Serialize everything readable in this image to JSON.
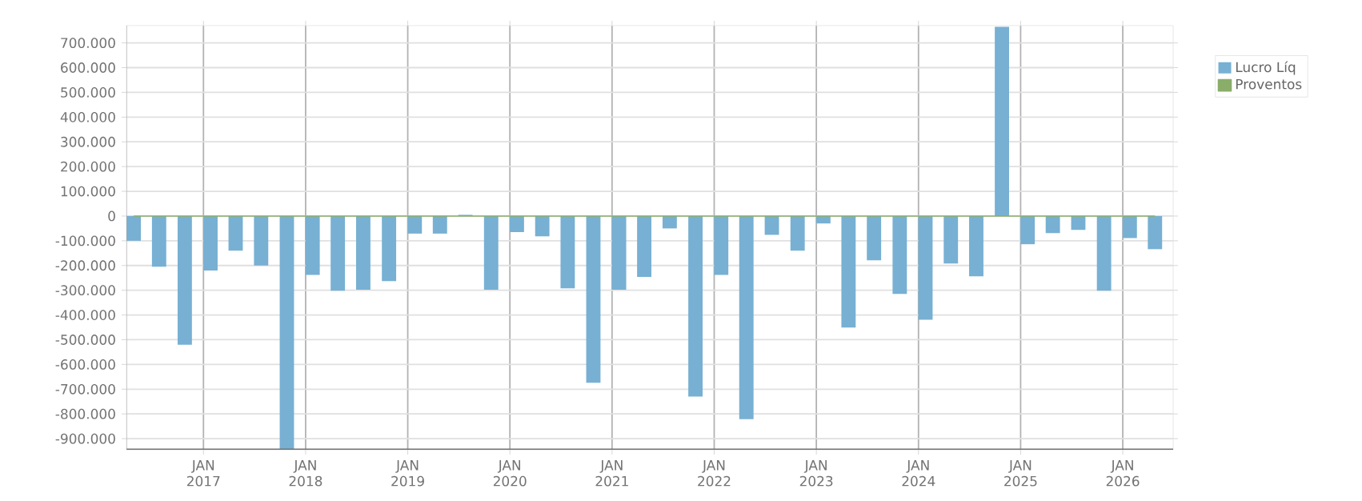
{
  "chart_data": {
    "type": "bar",
    "x": [
      "2016-04-26",
      "2016-07-26",
      "2016-10-26",
      "2017-01-26",
      "2017-04-26",
      "2017-07-26",
      "2017-10-26",
      "2018-01-26",
      "2018-04-26",
      "2018-07-26",
      "2018-10-26",
      "2019-01-26",
      "2019-04-26",
      "2019-07-26",
      "2019-10-26",
      "2020-01-26",
      "2020-04-26",
      "2020-07-26",
      "2020-10-26",
      "2021-01-26",
      "2021-04-26",
      "2021-07-26",
      "2021-10-26",
      "2022-01-26",
      "2022-04-26",
      "2022-07-26",
      "2022-10-26",
      "2023-01-26",
      "2023-04-26",
      "2023-07-26",
      "2023-10-26",
      "2024-01-26",
      "2024-04-26",
      "2024-07-26",
      "2024-10-26",
      "2025-01-26",
      "2025-04-26",
      "2025-07-26",
      "2025-10-26",
      "2026-01-26",
      "2026-04-26"
    ],
    "series": [
      {
        "name": "Lucro Líq",
        "color": "#77b0d3",
        "values": [
          -100000,
          -205000,
          -520000,
          -220000,
          -140000,
          -200000,
          -945000,
          -238000,
          -302000,
          -298000,
          -263000,
          -71000,
          -71000,
          5000,
          -298000,
          -65000,
          -82000,
          -292000,
          -674000,
          -298000,
          -246000,
          -50000,
          -730000,
          -238000,
          -821000,
          -76000,
          -140000,
          -30000,
          -451000,
          -179000,
          -315000,
          -419000,
          -192000,
          -244000,
          765000,
          -114000,
          -69000,
          -56000,
          -302000,
          -89000,
          -134000
        ]
      },
      {
        "name": "Proventos",
        "type": "line",
        "color": "#8aae6a",
        "values": [
          0,
          0,
          0,
          0,
          0,
          0,
          0,
          0,
          0,
          0,
          0,
          0,
          0,
          0,
          0,
          0,
          0,
          0,
          0,
          0,
          0,
          0,
          0,
          0,
          0,
          0,
          0,
          0,
          0,
          0,
          0,
          0,
          0,
          0,
          0,
          0,
          0,
          0,
          0,
          0,
          0
        ]
      }
    ],
    "xlim": [
      "2016-03-31",
      "2026-06-30"
    ],
    "xticks": [
      {
        "value": "2017-01-01",
        "label": "JAN 2017"
      },
      {
        "value": "2018-01-01",
        "label": "JAN 2018"
      },
      {
        "value": "2019-01-01",
        "label": "JAN 2019"
      },
      {
        "value": "2020-01-01",
        "label": "JAN 2020"
      },
      {
        "value": "2021-01-01",
        "label": "JAN 2021"
      },
      {
        "value": "2022-01-01",
        "label": "JAN 2022"
      },
      {
        "value": "2023-01-01",
        "label": "JAN 2023"
      },
      {
        "value": "2024-01-01",
        "label": "JAN 2024"
      },
      {
        "value": "2025-01-01",
        "label": "JAN 2025"
      },
      {
        "value": "2026-01-01",
        "label": "JAN 2026"
      }
    ],
    "ylim": [
      -945000,
      770000
    ],
    "yticks": [
      {
        "value": -900000,
        "label": "-900.000"
      },
      {
        "value": -800000,
        "label": "-800.000"
      },
      {
        "value": -700000,
        "label": "-700.000"
      },
      {
        "value": -600000,
        "label": "-600.000"
      },
      {
        "value": -500000,
        "label": "-500.000"
      },
      {
        "value": -400000,
        "label": "-400.000"
      },
      {
        "value": -300000,
        "label": "-300.000"
      },
      {
        "value": -200000,
        "label": "-200.000"
      },
      {
        "value": -100000,
        "label": "-100.000"
      },
      0,
      {
        "value": 100000,
        "label": "100.000"
      },
      {
        "value": 200000,
        "label": "200.000"
      },
      {
        "value": 300000,
        "label": "300.000"
      },
      {
        "value": 400000,
        "label": "400.000"
      },
      {
        "value": 500000,
        "label": "500.000"
      },
      {
        "value": 600000,
        "label": "600.000"
      },
      {
        "value": 700000,
        "label": "700.000"
      }
    ],
    "grid": true,
    "legend": "top right"
  }
}
